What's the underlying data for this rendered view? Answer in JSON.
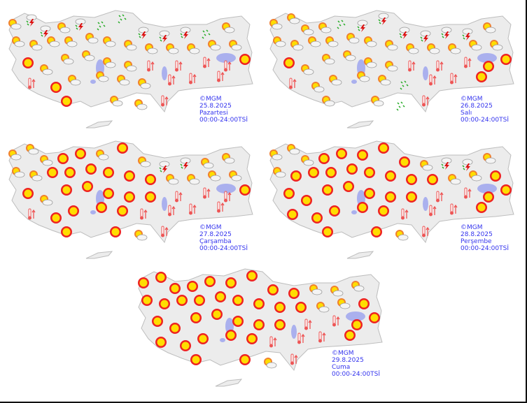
{
  "legend_codes": {
    "S": "sun-icon",
    "P": "partly-cloudy-icon",
    "T": "thunderstorm-icon",
    "R": "rain-shower-icon",
    "H": "hot-thermometer-icon"
  },
  "colors": {
    "land": "#ececec",
    "border": "#bdbdbd",
    "lake": "#aab0ee",
    "caption": "#3333ee",
    "sun": "#ffdd00",
    "sun_ray": "#ee2222",
    "thermo": "#ee5555",
    "rain": "#22aa22"
  },
  "panels": [
    {
      "copyright": "©MGM",
      "date": "25.8.2025",
      "day": "Pazartesi",
      "period": "00:00-24:00TSİ",
      "forecast": [
        "PTTPTRRTTTRP",
        "PPPPPPPPPPPP",
        "SPPPPPHHHHS",
        "HSPPPPHHH",
        "SPPH"
      ]
    },
    {
      "copyright": "©MGM",
      "date": "26.8.2025",
      "day": "Salı",
      "period": "00:00-24:00TSİ",
      "forecast": [
        "PPPPRTTTTTTP",
        "PPPPPPPPPPPP",
        "SPPPPPHHHSS",
        "HPPPPRHHS",
        "PPRH"
      ]
    },
    {
      "copyright": "©MGM",
      "date": "27.8.2025",
      "day": "Çarşamba",
      "period": "00:00-24:00TSİ",
      "forecast": [
        "PPPSSPSPTTPP",
        "PPSSSSSSPPPP",
        "SPSSSSSHHHS",
        "HSSSSHHHH",
        "SSPH"
      ]
    },
    {
      "copyright": "©MGM",
      "date": "28.8.2025",
      "day": "Perşembe",
      "period": "00:00-24:00TSİ",
      "forecast": [
        "PPPSSSSSPTTP",
        "PSSSSSSSSPPS",
        "SSSSSSSHHSS",
        "SSSSSHHHS",
        "SSPH"
      ]
    },
    {
      "copyright": "©MGM",
      "date": "29.8.2025",
      "day": "Cuma",
      "period": "00:00-24:00TSİ",
      "forecast": [
        "SSSSSSSSSPPP",
        "SSSSSSSSSPPS",
        "SSSSSSSHHSS",
        "SSSSSHHHS",
        "SSPH"
      ]
    }
  ]
}
